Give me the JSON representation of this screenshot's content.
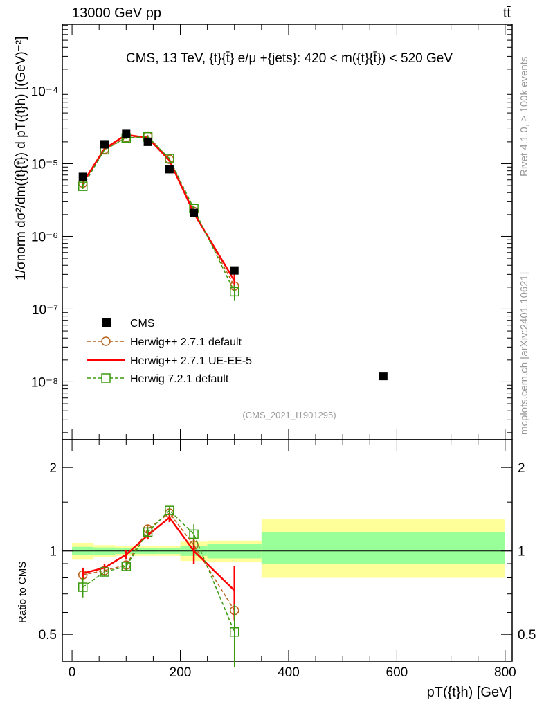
{
  "header": {
    "left": "13000 GeV pp",
    "right": "tt̄"
  },
  "side": {
    "rivet": "Rivet 4.1.0, ≥ 100k events",
    "mcplots": "mcplots.cern.ch [arXiv:2401.10621]"
  },
  "chart_data": [
    {
      "type": "scatter",
      "title": "CMS, 13 TeV, {t}{t̄} e/μ +{jets}: 420 < m({t}{t̄}) < 520 GeV",
      "annotation": "(CMS_2021_I1901295)",
      "ylabel": "1/σnorm dσ²/dm({t}{t̄}) d pT({t}h) [(GeV)⁻²]",
      "yscale": "log",
      "ylim": [
        1.6e-09,
        0.00083
      ],
      "xlim": [
        -18,
        813
      ],
      "ytick_labels": [
        "10⁻⁴",
        "10⁻⁵",
        "10⁻⁶",
        "10⁻⁷",
        "10⁻⁸"
      ],
      "ytick_values": [
        0.0001,
        1e-05,
        1e-06,
        1e-07,
        1e-08
      ],
      "legend": {
        "placement": "center-left",
        "entries": [
          "CMS",
          "Herwig++ 2.7.1 default",
          "Herwig++ 2.7.1 UE-EE-5",
          "Herwig 7.2.1 default"
        ]
      },
      "bins": [
        [
          0,
          40
        ],
        [
          40,
          80
        ],
        [
          80,
          120
        ],
        [
          120,
          160
        ],
        [
          160,
          200
        ],
        [
          200,
          250
        ],
        [
          250,
          350
        ],
        [
          350,
          800
        ]
      ],
      "x": [
        20,
        60,
        100,
        140,
        180,
        225,
        300,
        575
      ],
      "cms": [
        6.6e-06,
        1.85e-05,
        2.57e-05,
        2e-05,
        8.4e-06,
        2.1e-06,
        3.4e-07,
        1.2e-08
      ]
    },
    {
      "type": "line",
      "ylabel": "Ratio to CMS",
      "xlabel": "pT({t}h) [GeV]",
      "yscale": "log",
      "ylim": [
        0.4,
        2.52
      ],
      "xlim": [
        -18,
        813
      ],
      "ytick_labels": [
        "2",
        "1",
        "0.5"
      ],
      "ytick_values": [
        2,
        1,
        0.5
      ],
      "xtick_labels": [
        "0",
        "200",
        "400",
        "600",
        "800"
      ],
      "xtick_values": [
        0,
        200,
        400,
        600,
        800
      ],
      "band_yellow": [
        0.07,
        0.05,
        0.04,
        0.04,
        0.04,
        0.08,
        0.09,
        [
          0.8,
          1.3
        ]
      ],
      "band_green": [
        0.035,
        0.03,
        0.025,
        0.025,
        0.025,
        0.04,
        0.06,
        [
          0.9,
          1.17
        ]
      ],
      "series": [
        {
          "name": "Herwig++ 2.7.1 default",
          "color": "#b8621b",
          "marker": "circle",
          "dash": true,
          "values": [
            0.82,
            0.85,
            0.89,
            1.2,
            1.37,
            1.05,
            0.61
          ],
          "err": [
            0.03,
            0.03,
            0.03,
            0.04,
            0.05,
            0.06,
            0.12
          ]
        },
        {
          "name": "Herwig++ 2.7.1 UE-EE-5",
          "color": "#ff0000",
          "marker": "none",
          "dash": false,
          "values": [
            0.83,
            0.87,
            0.97,
            1.14,
            1.32,
            1.0,
            0.72
          ],
          "err": [
            0.04,
            0.03,
            0.04,
            0.04,
            0.05,
            0.1,
            0.16
          ]
        },
        {
          "name": "Herwig 7.2.1 default",
          "color": "#3a9a0e",
          "marker": "square",
          "dash": true,
          "values": [
            0.74,
            0.84,
            0.88,
            1.17,
            1.4,
            1.15,
            0.51
          ],
          "err": [
            0.06,
            0.03,
            0.03,
            0.04,
            0.05,
            0.1,
            0.13
          ]
        }
      ]
    }
  ]
}
